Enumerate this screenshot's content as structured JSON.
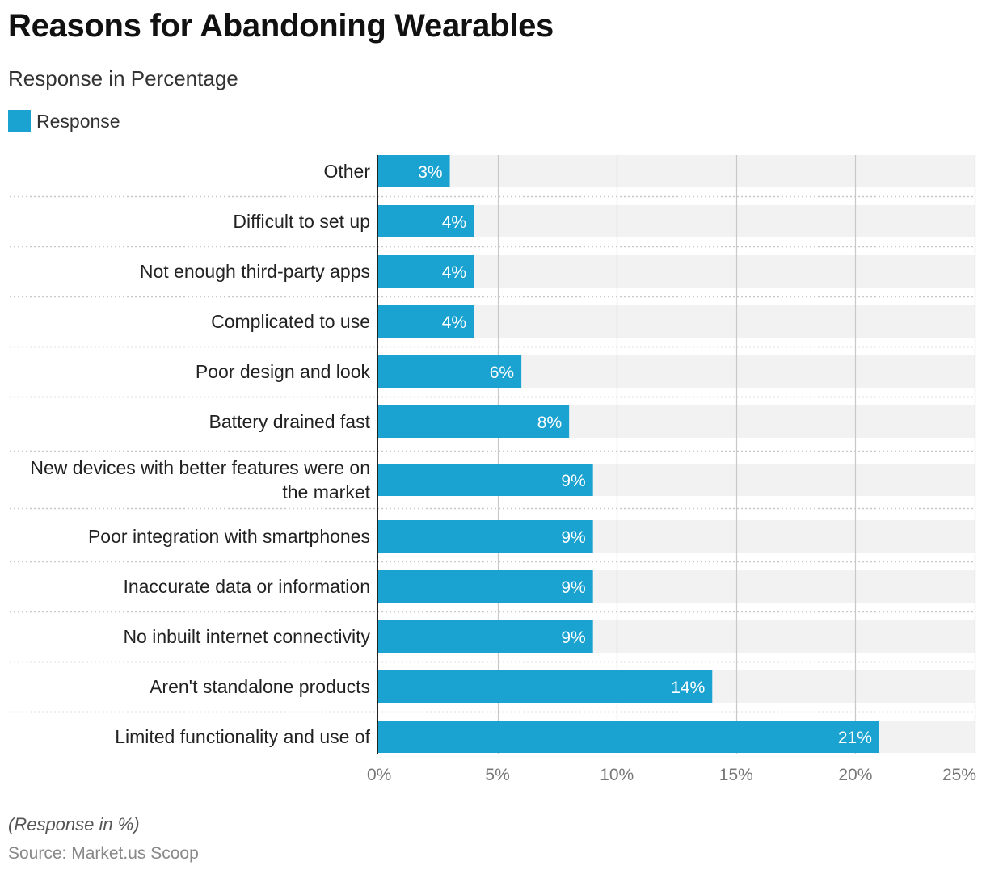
{
  "header": {
    "title": "Reasons for Abandoning Wearables",
    "subtitle": "Response in Percentage"
  },
  "legend": {
    "label": "Response"
  },
  "footer": {
    "note": "(Response in %)",
    "source": "Source: Market.us Scoop"
  },
  "colors": {
    "bar": "#1aa3d1",
    "track": "#f2f2f2",
    "grid": "#c8c8c8",
    "divider": "#c8c8c8",
    "axis": "#222222",
    "bar_label": "#ffffff",
    "category_label": "#222222",
    "tick_label": "#777777"
  },
  "chart_data": {
    "type": "bar",
    "orientation": "horizontal",
    "categories": [
      [
        "Other"
      ],
      [
        "Difficult to set up"
      ],
      [
        "Not enough third-party apps"
      ],
      [
        "Complicated to use"
      ],
      [
        "Poor design and look"
      ],
      [
        "Battery drained fast"
      ],
      [
        "New devices with better features were on",
        "the market"
      ],
      [
        "Poor integration with smartphones"
      ],
      [
        "Inaccurate data or information"
      ],
      [
        "No inbuilt internet connectivity"
      ],
      [
        "Aren't standalone products"
      ],
      [
        "Limited functionality and use of"
      ]
    ],
    "series": [
      {
        "name": "Response",
        "values": [
          3,
          4,
          4,
          4,
          6,
          8,
          9,
          9,
          9,
          9,
          14,
          21
        ],
        "labels": [
          "3%",
          "4%",
          "4%",
          "4%",
          "6%",
          "8%",
          "9%",
          "9%",
          "9%",
          "9%",
          "14%",
          "21%"
        ]
      }
    ],
    "xlim": [
      0,
      25
    ],
    "xticks": [
      0,
      5,
      10,
      15,
      20,
      25
    ],
    "xtick_labels": [
      "0%",
      "5%",
      "10%",
      "15%",
      "20%",
      "25%"
    ],
    "grid": true,
    "legend_position": "top-left"
  }
}
